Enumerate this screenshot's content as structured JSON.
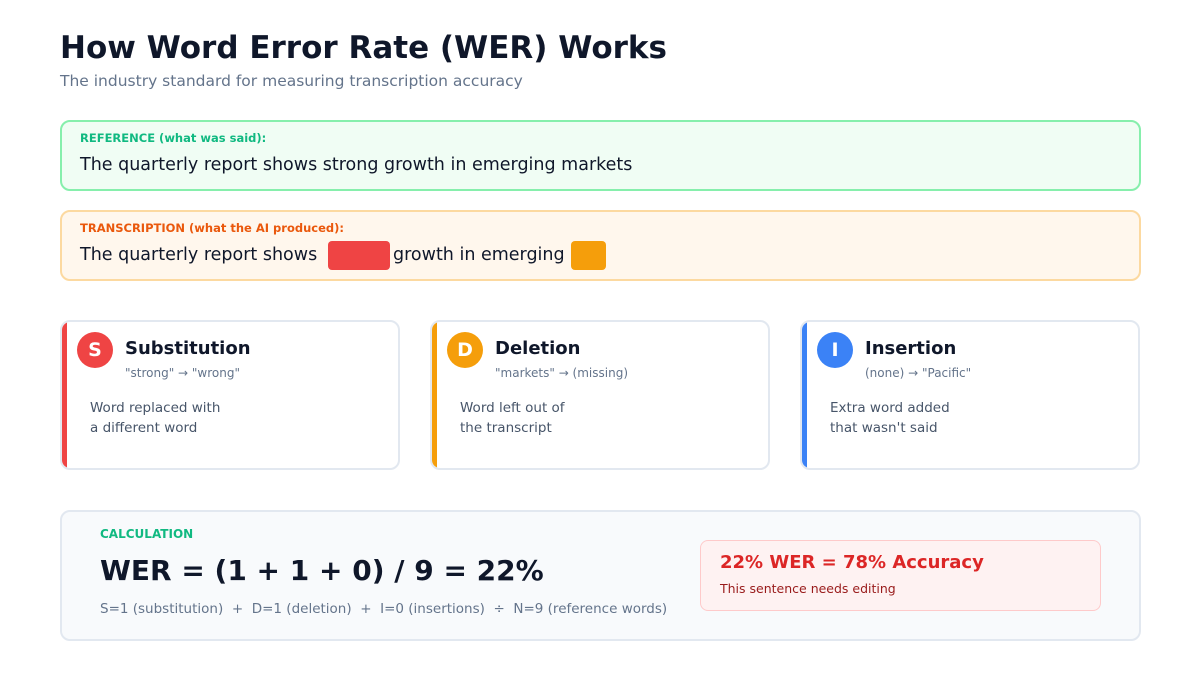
{
  "header": {
    "title": "How Word Error Rate (WER) Works",
    "subtitle": "The industry standard for measuring transcription accuracy"
  },
  "reference": {
    "label": "REFERENCE (what was said):",
    "text": "The quarterly report shows strong growth in emerging markets"
  },
  "transcription": {
    "label": "TRANSCRIPTION (what the AI produced):",
    "parts": [
      "The quarterly report shows",
      "growth in emerging"
    ]
  },
  "cards": [
    {
      "letter": "S",
      "title": "Substitution",
      "example": "\"strong\" → \"wrong\"",
      "description": [
        "Word replaced with",
        "a different word"
      ]
    },
    {
      "letter": "D",
      "title": "Deletion",
      "example": "\"markets\" → (missing)",
      "description": [
        "Word left out of",
        "the transcript"
      ]
    },
    {
      "letter": "I",
      "title": "Insertion",
      "example": "(none) → \"Pacific\"",
      "description": [
        "Extra word added",
        "that wasn't said"
      ]
    }
  ],
  "calculation": {
    "label": "CALCULATION",
    "formula": "WER = (1 + 1 + 0) / 9 = 22%",
    "breakdown": "S=1 (substitution)  +  D=1 (deletion)  +  I=0 (insertions)  ÷  N=9 (reference words)",
    "result_title": "22% WER = 78% Accuracy",
    "result_note": "This sentence needs editing"
  }
}
